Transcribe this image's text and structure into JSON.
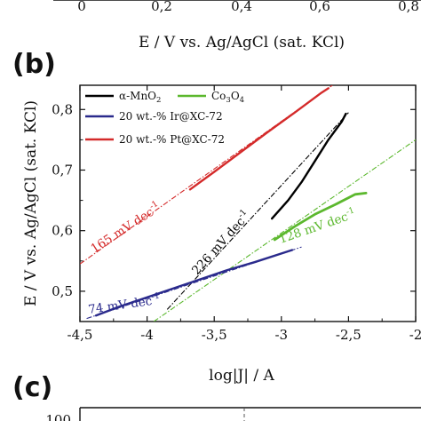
{
  "top_panel": {
    "tick_labels": [
      "0",
      "0,2",
      "0,4",
      "0,6",
      "0,8"
    ],
    "xlabel": "E / V vs. Ag/AgCl (sat. KCl)"
  },
  "panel_b": {
    "letter": "(b)"
  },
  "panel_c": {
    "letter": "(c)",
    "partial_tick": "100"
  },
  "colors": {
    "mno2": "#000000",
    "co3o4": "#5cb82e",
    "ir": "#2a2a8c",
    "pt": "#d42a2a"
  },
  "chart_data": {
    "type": "line",
    "title": "",
    "xlabel": "log|J| / A",
    "ylabel": "E / V vs. Ag/AgCl (sat. KCl)",
    "xlim": [
      -4.5,
      -2.0
    ],
    "ylim": [
      0.45,
      0.84
    ],
    "xticks": [
      -4.5,
      -4.0,
      -3.5,
      -3.0,
      -2.5,
      -2.0
    ],
    "xtick_labels": [
      "-4,5",
      "-4",
      "-3,5",
      "-3",
      "-2,5",
      "-2"
    ],
    "yticks": [
      0.5,
      0.6,
      0.7,
      0.8
    ],
    "ytick_labels": [
      "0,5",
      "0,6",
      "0,7",
      "0,8"
    ],
    "legend_position": "top-left",
    "series": [
      {
        "name": "α-MnO2",
        "legend": {
          "main": "α-MnO",
          "sub": "2"
        },
        "color": "#000000",
        "data": [
          [
            -3.07,
            0.62
          ],
          [
            -2.95,
            0.65
          ],
          [
            -2.85,
            0.68
          ],
          [
            -2.75,
            0.715
          ],
          [
            -2.65,
            0.75
          ],
          [
            -2.55,
            0.78
          ],
          [
            -2.52,
            0.793
          ]
        ],
        "fit": [
          [
            -3.85,
            0.47
          ],
          [
            -2.5,
            0.795
          ]
        ],
        "slope_label": "226 mV dec",
        "slope_sup": "-1"
      },
      {
        "name": "Co3O4",
        "legend": {
          "main": "Co",
          "sub": "3",
          "main2": "O",
          "sub2": "4"
        },
        "color": "#5cb82e",
        "data": [
          [
            -3.05,
            0.585
          ],
          [
            -2.9,
            0.607
          ],
          [
            -2.75,
            0.627
          ],
          [
            -2.6,
            0.643
          ],
          [
            -2.45,
            0.66
          ],
          [
            -2.37,
            0.662
          ]
        ],
        "fit": [
          [
            -3.95,
            0.45
          ],
          [
            -2.0,
            0.75
          ]
        ],
        "slope_label": "128 mV dec",
        "slope_sup": "-1"
      },
      {
        "name": "20 wt.-% Ir@XC-72",
        "legend": {
          "main": "20 wt.-% Ir@XC-72"
        },
        "color": "#2a2a8c",
        "data": [
          [
            -4.38,
            0.46
          ],
          [
            -4.2,
            0.475
          ],
          [
            -4.0,
            0.49
          ],
          [
            -3.8,
            0.505
          ],
          [
            -3.6,
            0.52
          ],
          [
            -3.4,
            0.535
          ],
          [
            -3.2,
            0.548
          ],
          [
            -2.92,
            0.568
          ]
        ],
        "fit": [
          [
            -4.45,
            0.455
          ],
          [
            -2.85,
            0.573
          ]
        ],
        "slope_label": "74 mV dec",
        "slope_sup": "-1"
      },
      {
        "name": "20 wt.-% Pt@XC-72",
        "legend": {
          "main": "20 wt.-% Pt@XC-72"
        },
        "color": "#d42a2a",
        "data": [
          [
            -3.68,
            0.668
          ],
          [
            -3.5,
            0.697
          ],
          [
            -3.3,
            0.73
          ],
          [
            -3.1,
            0.763
          ],
          [
            -2.9,
            0.795
          ],
          [
            -2.7,
            0.828
          ],
          [
            -2.65,
            0.835
          ]
        ],
        "fit": [
          [
            -4.5,
            0.545
          ],
          [
            -2.62,
            0.84
          ]
        ],
        "slope_label": "165 mV dec",
        "slope_sup": "-1"
      }
    ]
  }
}
